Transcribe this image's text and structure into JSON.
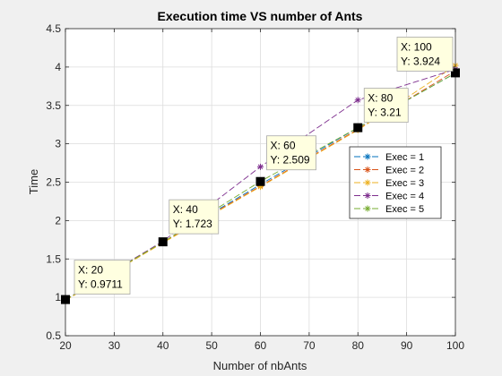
{
  "chart_data": {
    "type": "line",
    "title": "Execution time VS number of Ants",
    "xlabel": "Number of nbAnts",
    "ylabel": "Time",
    "xlim": [
      20,
      100
    ],
    "ylim": [
      0.5,
      4.5
    ],
    "xticks": [
      20,
      30,
      40,
      50,
      60,
      70,
      80,
      90,
      100
    ],
    "yticks": [
      0.5,
      1,
      1.5,
      2,
      2.5,
      3,
      3.5,
      4,
      4.5
    ],
    "grid": true,
    "legend_position": "right",
    "x": [
      20,
      40,
      60,
      80,
      100
    ],
    "series": [
      {
        "name": "Exec = 1",
        "color": "#0072BD",
        "values": [
          0.97,
          1.72,
          2.47,
          3.21,
          3.92
        ]
      },
      {
        "name": "Exec = 2",
        "color": "#D95319",
        "values": [
          0.97,
          1.72,
          2.45,
          3.19,
          3.95
        ]
      },
      {
        "name": "Exec = 3",
        "color": "#EDB120",
        "values": [
          0.96,
          1.71,
          2.44,
          3.18,
          4.02
        ]
      },
      {
        "name": "Exec = 4",
        "color": "#7E2F8E",
        "values": [
          0.97,
          1.73,
          2.7,
          3.57,
          3.97
        ]
      },
      {
        "name": "Exec = 5",
        "color": "#77AC30",
        "values": [
          0.97,
          1.72,
          2.51,
          3.21,
          3.92
        ]
      }
    ],
    "annotations": [
      {
        "x": 20,
        "y": 0.9711,
        "x_text": "X: 20",
        "y_text": "Y: 0.9711"
      },
      {
        "x": 40,
        "y": 1.723,
        "x_text": "X: 40",
        "y_text": "Y: 1.723"
      },
      {
        "x": 60,
        "y": 2.509,
        "x_text": "X: 60",
        "y_text": "Y: 2.509"
      },
      {
        "x": 80,
        "y": 3.21,
        "x_text": "X: 80",
        "y_text": "Y: 3.21"
      },
      {
        "x": 100,
        "y": 3.924,
        "x_text": "X: 100",
        "y_text": "Y: 3.924"
      }
    ]
  }
}
